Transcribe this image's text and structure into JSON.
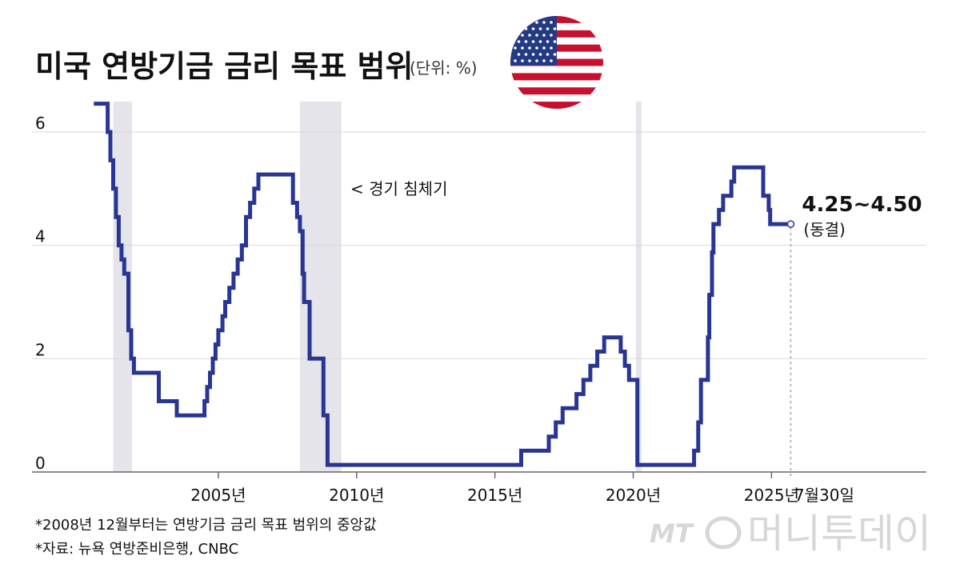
{
  "colors": {
    "line": "#283593",
    "recession": "#e4e4ea",
    "grid": "#d9d9d9",
    "axis": "#666666",
    "text": "#111111",
    "flag_red": "#c8102e",
    "flag_blue": "#243a82",
    "watermark": "#b8b8b8"
  },
  "chart_data": {
    "type": "line",
    "step": true,
    "title": "미국 연방기금 금리 목표 범위",
    "unit": "(단위: %)",
    "x_ticks": [
      {
        "value": 2005,
        "label": "2005년"
      },
      {
        "value": 2010,
        "label": "2010년"
      },
      {
        "value": 2015,
        "label": "2015년"
      },
      {
        "value": 2020,
        "label": "2020년"
      },
      {
        "value": 2025,
        "label": "2025년"
      }
    ],
    "x_end_label": "7월30일",
    "xlim": [
      2000.0,
      2030.6
    ],
    "ylim": [
      0,
      6.5
    ],
    "y_ticks": [
      {
        "value": 0,
        "label": "0"
      },
      {
        "value": 2,
        "label": "2"
      },
      {
        "value": 4,
        "label": "4"
      },
      {
        "value": 6,
        "label": "6"
      }
    ],
    "grid": true,
    "recessions": [
      {
        "start": 2001.2,
        "end": 2001.88
      },
      {
        "start": 2007.95,
        "end": 2009.45
      },
      {
        "start": 2020.1,
        "end": 2020.3
      }
    ],
    "recession_label": "< 경기 침체기",
    "series": [
      {
        "values": [
          [
            2000.5,
            6.5
          ],
          [
            2001.0,
            6.0
          ],
          [
            2001.1,
            5.5
          ],
          [
            2001.2,
            5.0
          ],
          [
            2001.3,
            4.5
          ],
          [
            2001.4,
            4.0
          ],
          [
            2001.5,
            3.75
          ],
          [
            2001.6,
            3.5
          ],
          [
            2001.75,
            2.5
          ],
          [
            2001.85,
            2.0
          ],
          [
            2001.95,
            1.75
          ],
          [
            2002.85,
            1.25
          ],
          [
            2003.5,
            1.0
          ],
          [
            2004.5,
            1.25
          ],
          [
            2004.6,
            1.5
          ],
          [
            2004.7,
            1.75
          ],
          [
            2004.8,
            2.0
          ],
          [
            2004.9,
            2.25
          ],
          [
            2005.0,
            2.5
          ],
          [
            2005.15,
            2.75
          ],
          [
            2005.25,
            3.0
          ],
          [
            2005.4,
            3.25
          ],
          [
            2005.55,
            3.5
          ],
          [
            2005.7,
            3.75
          ],
          [
            2005.85,
            4.0
          ],
          [
            2006.0,
            4.5
          ],
          [
            2006.15,
            4.75
          ],
          [
            2006.3,
            5.0
          ],
          [
            2006.45,
            5.25
          ],
          [
            2007.7,
            4.75
          ],
          [
            2007.85,
            4.5
          ],
          [
            2007.95,
            4.25
          ],
          [
            2008.05,
            3.5
          ],
          [
            2008.1,
            3.0
          ],
          [
            2008.3,
            2.0
          ],
          [
            2008.8,
            1.0
          ],
          [
            2008.95,
            0.125
          ],
          [
            2015.95,
            0.375
          ],
          [
            2016.95,
            0.625
          ],
          [
            2017.2,
            0.875
          ],
          [
            2017.45,
            1.125
          ],
          [
            2017.95,
            1.375
          ],
          [
            2018.2,
            1.625
          ],
          [
            2018.45,
            1.875
          ],
          [
            2018.7,
            2.125
          ],
          [
            2018.95,
            2.375
          ],
          [
            2019.55,
            2.125
          ],
          [
            2019.7,
            1.875
          ],
          [
            2019.85,
            1.625
          ],
          [
            2020.15,
            0.125
          ],
          [
            2022.2,
            0.375
          ],
          [
            2022.35,
            0.875
          ],
          [
            2022.45,
            1.625
          ],
          [
            2022.7,
            2.375
          ],
          [
            2022.75,
            3.125
          ],
          [
            2022.85,
            3.875
          ],
          [
            2022.9,
            4.375
          ],
          [
            2023.1,
            4.625
          ],
          [
            2023.25,
            4.875
          ],
          [
            2023.55,
            5.125
          ],
          [
            2023.65,
            5.375
          ],
          [
            2024.7,
            4.875
          ],
          [
            2024.9,
            4.625
          ],
          [
            2024.95,
            4.375
          ],
          [
            2025.58,
            4.375
          ]
        ]
      }
    ],
    "annotations": [
      {
        "value": "4.25~4.50",
        "sub": "(동결)"
      }
    ],
    "footnotes": [
      "*2008년 12월부터는 연방기금 금리 목표 범위의 중앙값",
      "*자료: 뉴욕 연방준비은행, CNBC"
    ]
  },
  "watermark": {
    "logo": "MT",
    "name": "머니투데이"
  }
}
